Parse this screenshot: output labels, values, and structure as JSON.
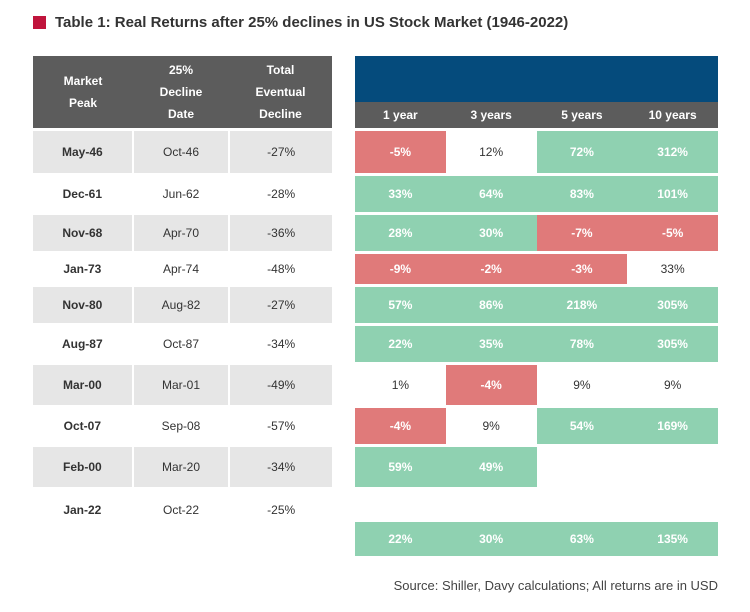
{
  "title": "Table 1: Real Returns after 25% declines in US Stock Market (1946-2022)",
  "left_headers": {
    "market_peak": [
      "Market",
      "Peak"
    ],
    "decline_date": [
      "25%",
      "Decline",
      "Date"
    ],
    "eventual_decline": [
      "Total",
      "Eventual",
      "Decline"
    ]
  },
  "right_headers": [
    "1 year",
    "3 years",
    "5 years",
    "10 years"
  ],
  "rows": [
    {
      "peak": "May-46",
      "date": "Oct-46",
      "decline": "-27%",
      "returns": [
        "-5%",
        "12%",
        "72%",
        "312%"
      ],
      "colors": [
        "r",
        "w",
        "g",
        "g"
      ]
    },
    {
      "peak": "Dec-61",
      "date": "Jun-62",
      "decline": "-28%",
      "returns": [
        "33%",
        "64%",
        "83%",
        "101%"
      ],
      "colors": [
        "g",
        "g",
        "g",
        "g"
      ]
    },
    {
      "peak": "Nov-68",
      "date": "Apr-70",
      "decline": "-36%",
      "returns": [
        "28%",
        "30%",
        "-7%",
        "-5%"
      ],
      "colors": [
        "g",
        "g",
        "r",
        "r"
      ]
    },
    {
      "peak": "Jan-73",
      "date": "Apr-74",
      "decline": "-48%",
      "returns": [
        "-9%",
        "-2%",
        "-3%",
        "33%"
      ],
      "colors": [
        "r",
        "r",
        "r",
        "w"
      ]
    },
    {
      "peak": "Nov-80",
      "date": "Aug-82",
      "decline": "-27%",
      "returns": [
        "57%",
        "86%",
        "218%",
        "305%"
      ],
      "colors": [
        "g",
        "g",
        "g",
        "g"
      ]
    },
    {
      "peak": "Aug-87",
      "date": "Oct-87",
      "decline": "-34%",
      "returns": [
        "22%",
        "35%",
        "78%",
        "305%"
      ],
      "colors": [
        "g",
        "g",
        "g",
        "g"
      ]
    },
    {
      "peak": "Mar-00",
      "date": "Mar-01",
      "decline": "-49%",
      "returns": [
        "1%",
        "-4%",
        "9%",
        "9%"
      ],
      "colors": [
        "w",
        "r",
        "w",
        "w"
      ]
    },
    {
      "peak": "Oct-07",
      "date": "Sep-08",
      "decline": "-57%",
      "returns": [
        "-4%",
        "9%",
        "54%",
        "169%"
      ],
      "colors": [
        "r",
        "w",
        "g",
        "g"
      ]
    },
    {
      "peak": "Feb-00",
      "date": "Mar-20",
      "decline": "-34%",
      "returns": [
        "59%",
        "49%",
        "",
        ""
      ],
      "colors": [
        "g",
        "g",
        "e",
        "e"
      ]
    },
    {
      "peak": "Jan-22",
      "date": "Oct-22",
      "decline": "-25%",
      "returns": [
        "",
        "",
        "",
        ""
      ],
      "colors": [
        "e",
        "e",
        "e",
        "e"
      ]
    }
  ],
  "averages": [
    "22%",
    "30%",
    "63%",
    "135%"
  ],
  "source": "Source: Shiller, Davy calculations; All returns are in USD"
}
